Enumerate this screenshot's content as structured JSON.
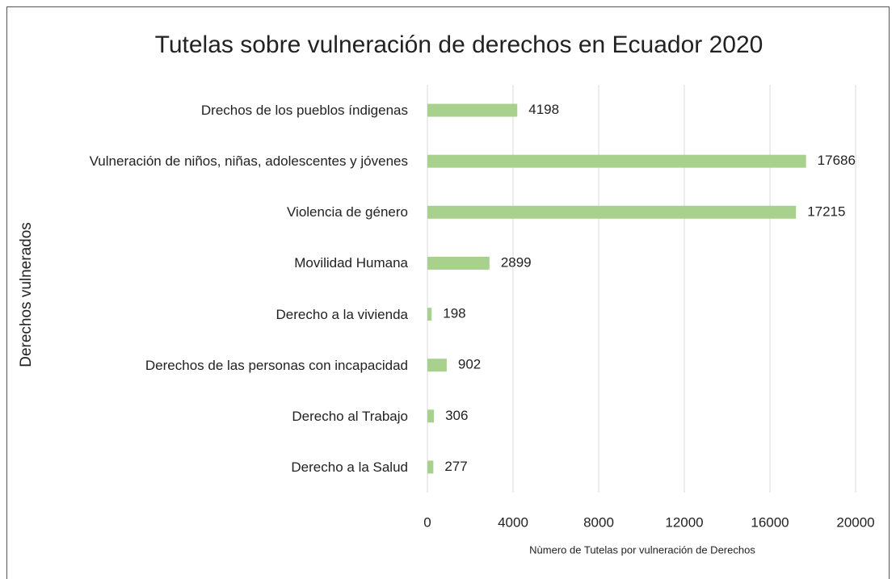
{
  "chart_data": {
    "type": "bar",
    "orientation": "horizontal",
    "title": "Tutelas sobre vulneración de derechos en Ecuador 2020",
    "x_label": "Nùmero de Tutelas por vulneración de Derechos",
    "y_label": "Derechos vulnerados",
    "categories": [
      "Drechos de los pueblos índigenas",
      "Vulneración de niños, niñas, adolescentes y jóvenes",
      "Violencia de género",
      "Movilidad Humana",
      "Derecho a la vivienda",
      "Derechos de las personas con incapacidad",
      "Derecho al Trabajo",
      "Derecho a la Salud"
    ],
    "values": [
      4198,
      17686,
      17215,
      2899,
      198,
      902,
      306,
      277
    ],
    "color": "#a9d18e",
    "xlim": [
      0,
      20000
    ],
    "xticks": [
      0,
      4000,
      8000,
      12000,
      16000,
      20000
    ],
    "grid": true
  }
}
